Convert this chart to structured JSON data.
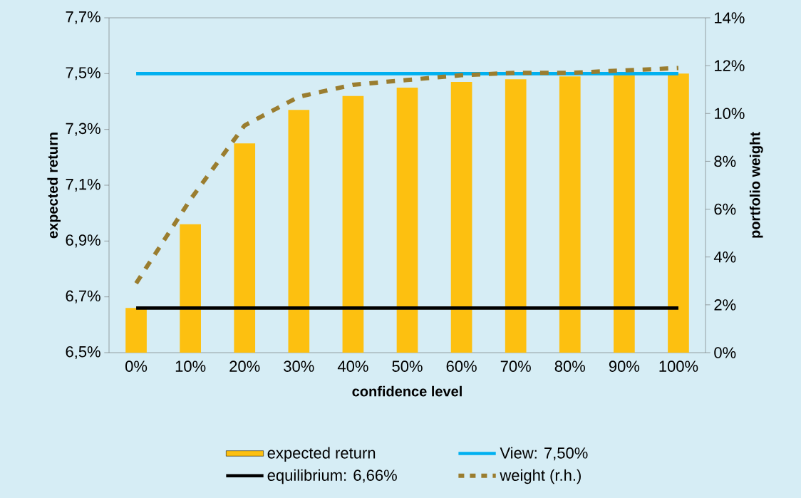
{
  "chart_data": {
    "type": "bar",
    "xlabel": "confidence level",
    "ylabel": "expected return",
    "y2label": "portfolio weight",
    "categories": [
      "0%",
      "10%",
      "20%",
      "30%",
      "40%",
      "50%",
      "60%",
      "70%",
      "80%",
      "90%",
      "100%"
    ],
    "series": [
      {
        "name": "expected return",
        "color": "#fdc010",
        "values": [
          6.66,
          6.96,
          7.25,
          7.37,
          7.42,
          7.45,
          7.47,
          7.48,
          7.49,
          7.495,
          7.5
        ]
      },
      {
        "name": "View: 7,50%",
        "type": "line",
        "color": "#00b0f0",
        "line_style": "solid",
        "values": [
          7.5,
          7.5,
          7.5,
          7.5,
          7.5,
          7.5,
          7.5,
          7.5,
          7.5,
          7.5,
          7.5
        ]
      },
      {
        "name": "equilibrium: 6,66%",
        "type": "line",
        "color": "#000000",
        "line_style": "solid",
        "values": [
          6.66,
          6.66,
          6.66,
          6.66,
          6.66,
          6.66,
          6.66,
          6.66,
          6.66,
          6.66,
          6.66
        ]
      },
      {
        "name": "weight (r.h.)",
        "type": "line",
        "axis": "y2",
        "color": "#9a7d2f",
        "line_style": "dashed",
        "values": [
          2.9,
          6.4,
          9.5,
          10.7,
          11.2,
          11.4,
          11.6,
          11.7,
          11.7,
          11.8,
          11.9
        ]
      }
    ],
    "ylim": [
      6.5,
      7.7
    ],
    "yticks": [
      {
        "value": 6.5,
        "label": "6,5%"
      },
      {
        "value": 6.7,
        "label": "6,7%"
      },
      {
        "value": 6.9,
        "label": "6,9%"
      },
      {
        "value": 7.1,
        "label": "7,1%"
      },
      {
        "value": 7.3,
        "label": "7,3%"
      },
      {
        "value": 7.5,
        "label": "7,5%"
      },
      {
        "value": 7.7,
        "label": "7,7%"
      }
    ],
    "y2lim": [
      0,
      14
    ],
    "y2ticks": [
      {
        "value": 0,
        "label": "0%"
      },
      {
        "value": 2,
        "label": "2%"
      },
      {
        "value": 4,
        "label": "4%"
      },
      {
        "value": 6,
        "label": "6%"
      },
      {
        "value": 8,
        "label": "8%"
      },
      {
        "value": 10,
        "label": "10%"
      },
      {
        "value": 12,
        "label": "12%"
      },
      {
        "value": 14,
        "label": "14%"
      }
    ],
    "legend": "bottom"
  }
}
